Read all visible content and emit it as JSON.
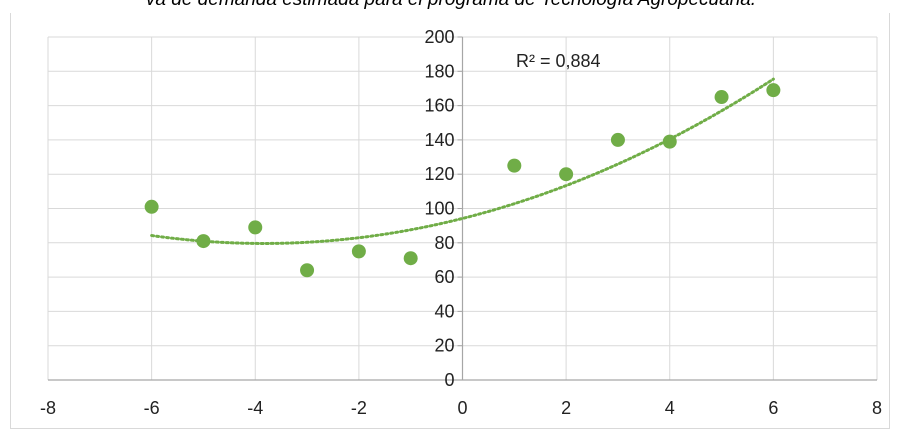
{
  "title_text": "va de demanda estimada para el programa de Tecnología Agropecuaria.",
  "chart_data": {
    "type": "scatter",
    "title": "va de demanda estimada para el programa de Tecnología Agropecuaria.",
    "xlabel": "",
    "ylabel": "",
    "xlim": [
      -8,
      8
    ],
    "ylim": [
      0,
      200
    ],
    "x_ticks": [
      "-8",
      "-6",
      "-4",
      "-2",
      "0",
      "2",
      "4",
      "6",
      "8"
    ],
    "y_ticks": [
      "0",
      "20",
      "40",
      "60",
      "80",
      "100",
      "120",
      "140",
      "160",
      "180",
      "200"
    ],
    "grid": true,
    "points": [
      {
        "x": -6,
        "y": 101
      },
      {
        "x": -5,
        "y": 81
      },
      {
        "x": -4,
        "y": 89
      },
      {
        "x": -3,
        "y": 64
      },
      {
        "x": -2,
        "y": 75
      },
      {
        "x": -1,
        "y": 71
      },
      {
        "x": 1,
        "y": 125
      },
      {
        "x": 2,
        "y": 120
      },
      {
        "x": 3,
        "y": 140
      },
      {
        "x": 4,
        "y": 139
      },
      {
        "x": 5,
        "y": 165
      },
      {
        "x": 6,
        "y": 169
      }
    ],
    "trendline": {
      "type": "polynomial",
      "coefficients": [
        94.2,
        7.6,
        0.99
      ],
      "x_range": [
        -6,
        6
      ],
      "r2_label": "R² = 0,884"
    },
    "colors": {
      "marker": "#70ad47",
      "trendline": "#70ad47",
      "grid": "#d9d9d9",
      "axis": "#a6a6a6"
    }
  }
}
